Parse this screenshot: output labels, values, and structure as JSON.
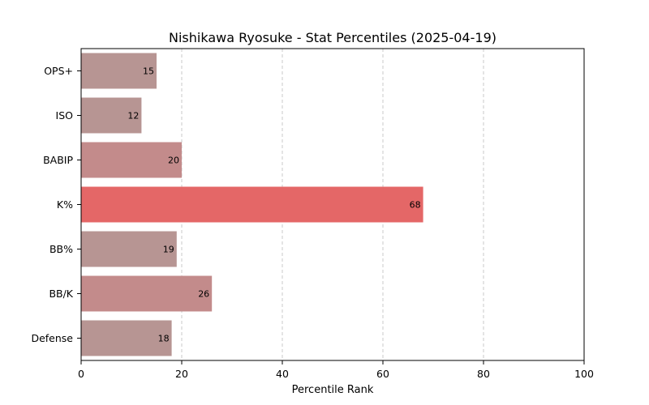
{
  "chart_data": {
    "type": "bar",
    "orientation": "horizontal",
    "title": "Nishikawa Ryosuke - Stat Percentiles (2025-04-19)",
    "xlabel": "Percentile Rank",
    "ylabel": "",
    "xlim": [
      0,
      100
    ],
    "xticks": [
      0,
      20,
      40,
      60,
      80,
      100
    ],
    "grid": "x-dashed",
    "categories": [
      "OPS+",
      "ISO",
      "BABIP",
      "K%",
      "BB%",
      "BB/K",
      "Defense"
    ],
    "values": [
      15,
      12,
      20,
      68,
      19,
      26,
      18
    ],
    "colors": [
      "#b79593",
      "#b79593",
      "#c38b8b",
      "#e46767",
      "#b79593",
      "#c38b8b",
      "#b79593"
    ]
  }
}
